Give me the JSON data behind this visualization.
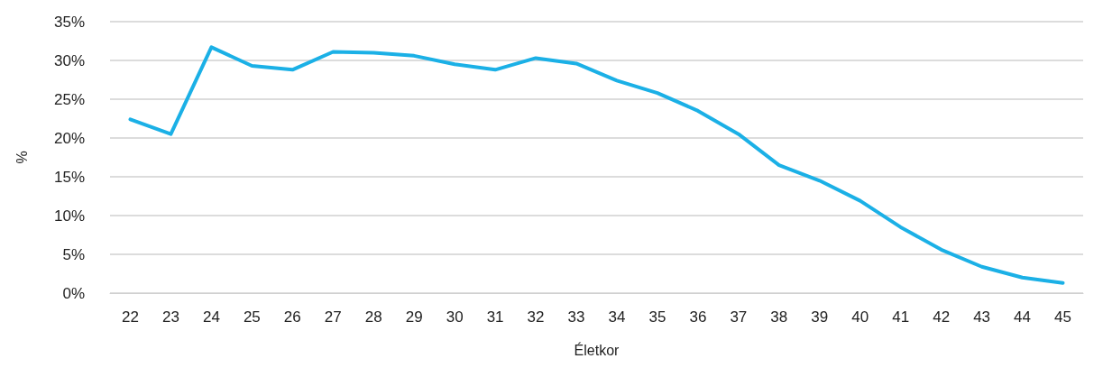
{
  "chart_data": {
    "type": "line",
    "xlabel": "Életkor",
    "ylabel": "%",
    "categories": [
      "22",
      "23",
      "24",
      "25",
      "26",
      "27",
      "28",
      "29",
      "30",
      "31",
      "32",
      "33",
      "34",
      "35",
      "36",
      "37",
      "38",
      "39",
      "40",
      "41",
      "42",
      "43",
      "44",
      "45"
    ],
    "series": [
      {
        "color": "#1bb0e6",
        "values": [
          22.4,
          20.5,
          31.7,
          29.3,
          28.8,
          31.1,
          31.0,
          30.6,
          29.5,
          28.8,
          30.3,
          29.6,
          27.4,
          25.8,
          23.5,
          20.5,
          16.5,
          14.5,
          11.9,
          8.5,
          5.6,
          3.4,
          2.0,
          1.3
        ]
      }
    ],
    "ylim": [
      0,
      35
    ],
    "yticks": [
      {
        "value": 0,
        "label": "0%"
      },
      {
        "value": 5,
        "label": "5%"
      },
      {
        "value": 10,
        "label": "10%"
      },
      {
        "value": 15,
        "label": "15%"
      },
      {
        "value": 20,
        "label": "20%"
      },
      {
        "value": 25,
        "label": "25%"
      },
      {
        "value": 30,
        "label": "30%"
      },
      {
        "value": 35,
        "label": "35%"
      }
    ],
    "grid": "y",
    "marker": "none",
    "line_style": "solid"
  }
}
